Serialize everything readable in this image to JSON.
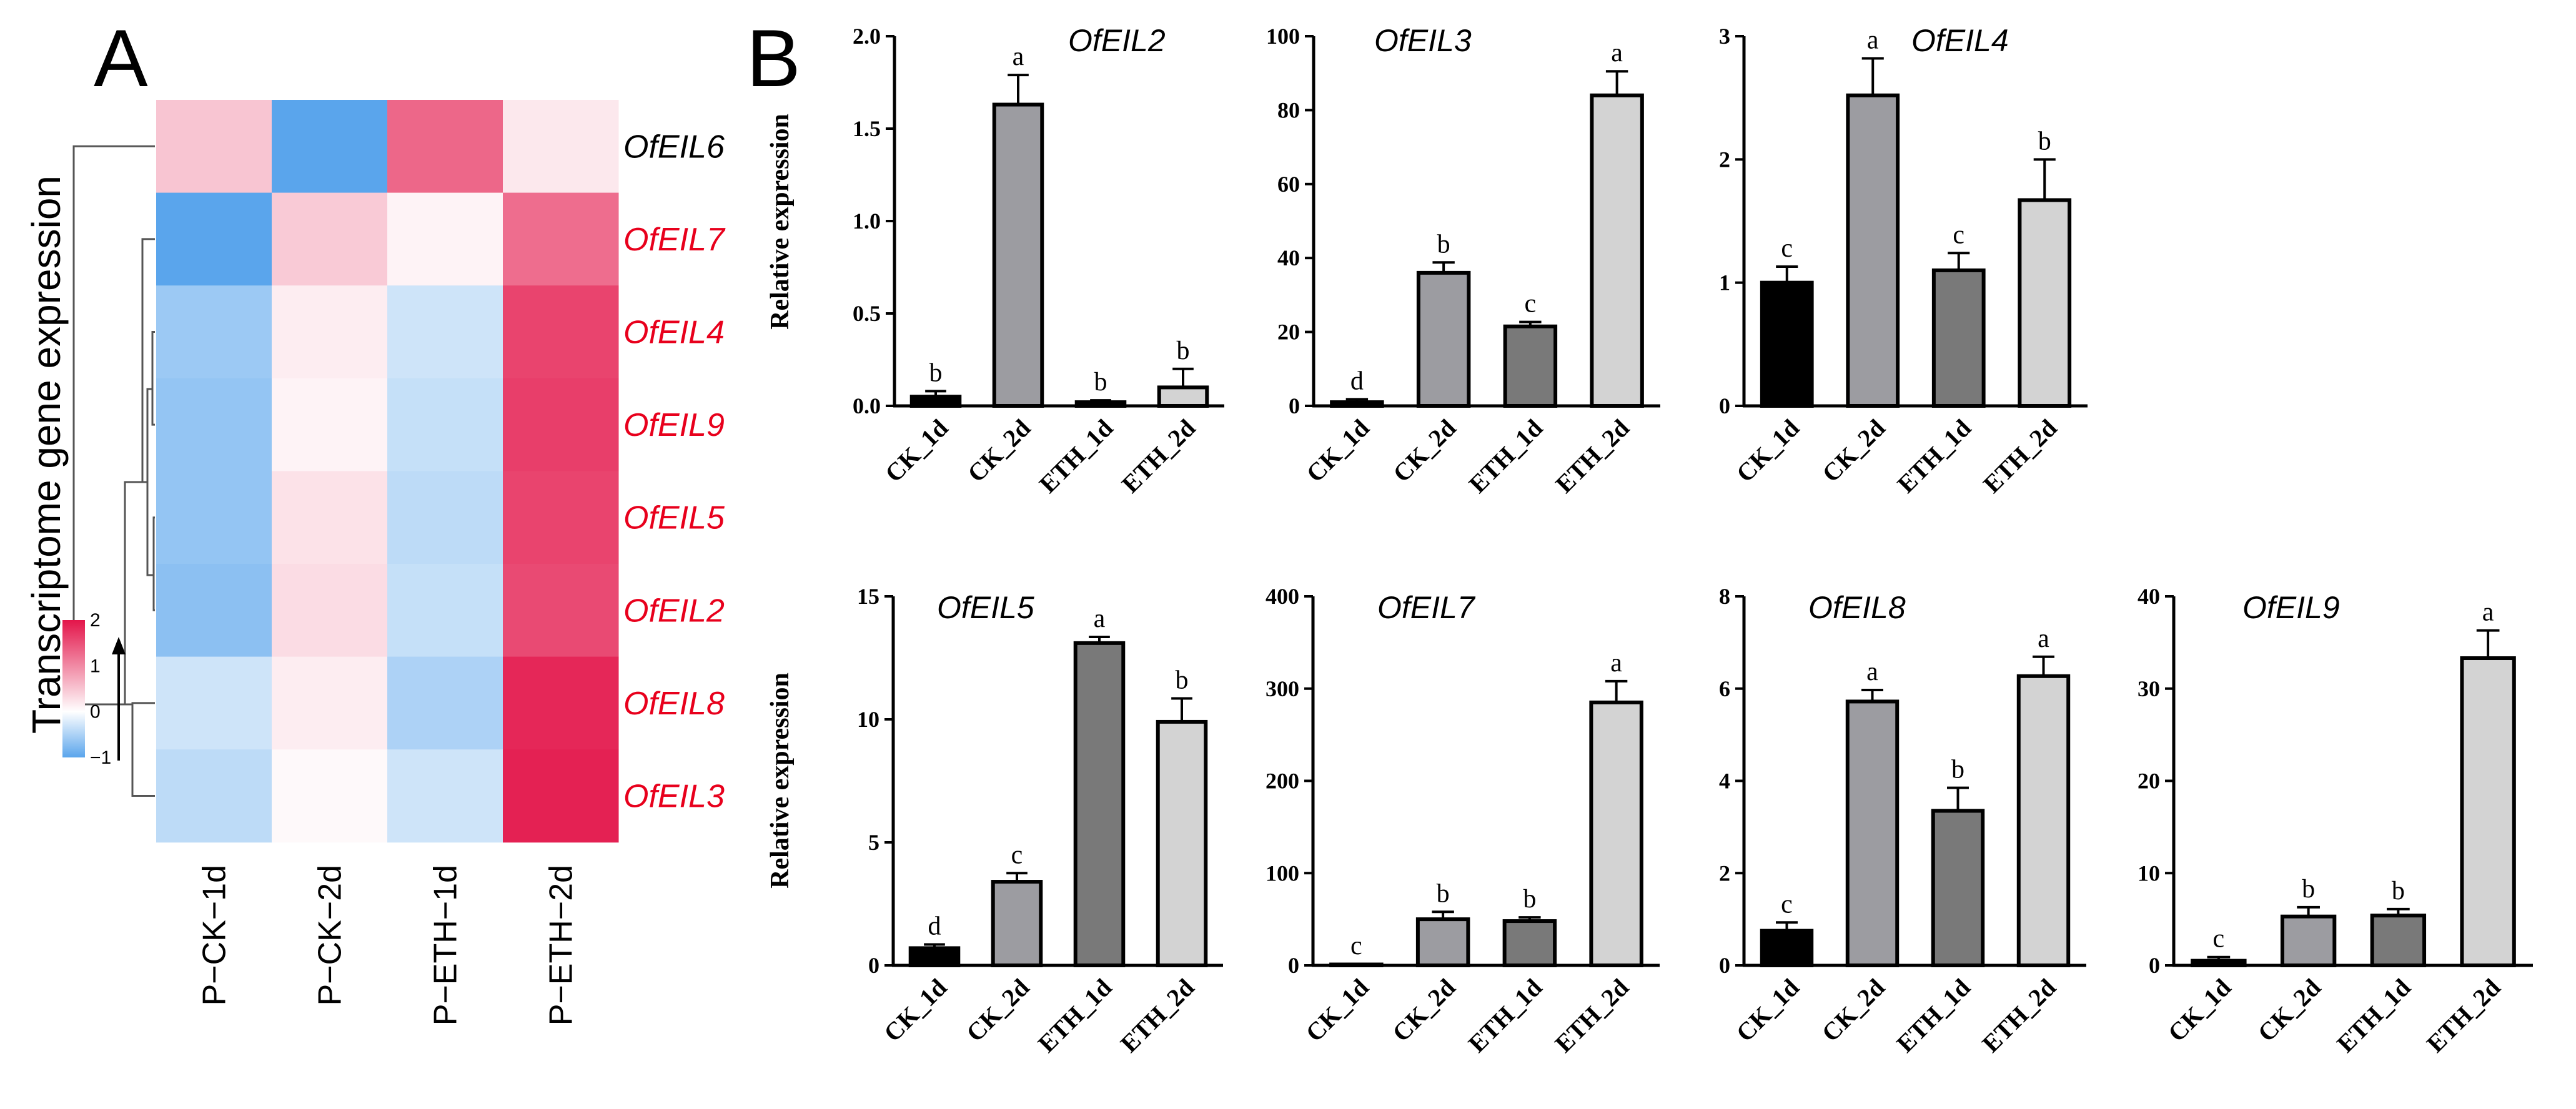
{
  "panel_a": {
    "letter": "A"
  },
  "panel_b": {
    "letter": "B"
  },
  "chart_data": [
    {
      "type": "heatmap",
      "title": "Transcriptome gene expression",
      "columns": [
        "P−CK−1d",
        "P−CK−2d",
        "P−ETH−1d",
        "P−ETH−2d"
      ],
      "rows": [
        "OfEIL6",
        "OfEIL7",
        "OfEIL4",
        "OfEIL9",
        "OfEIL5",
        "OfEIL2",
        "OfEIL8",
        "OfEIL3"
      ],
      "row_label_colors": [
        "#000000",
        "#e8001c",
        "#e8001c",
        "#e8001c",
        "#e8001c",
        "#e8001c",
        "#e8001c",
        "#e8001c"
      ],
      "values": [
        [
          0.5,
          -1.0,
          1.3,
          0.2
        ],
        [
          -1.0,
          0.45,
          0.1,
          1.25
        ],
        [
          -0.6,
          0.15,
          -0.3,
          1.6
        ],
        [
          -0.65,
          0.1,
          -0.35,
          1.65
        ],
        [
          -0.65,
          0.25,
          -0.4,
          1.6
        ],
        [
          -0.7,
          0.3,
          -0.35,
          1.55
        ],
        [
          -0.3,
          0.15,
          -0.5,
          1.85
        ],
        [
          -0.4,
          0.05,
          -0.3,
          1.9
        ]
      ],
      "color_scale": {
        "min": -1,
        "max": 2,
        "ticks": [
          2,
          1,
          0,
          -1
        ],
        "tick_labels": [
          "2",
          "1",
          "0",
          "−1"
        ],
        "low_color": "#5aa5ec",
        "mid_color": "#ffffff",
        "high_color": "#e3154a"
      }
    },
    {
      "type": "bar",
      "title": "OfEIL2",
      "ylabel": "Relative expression",
      "categories": [
        "CK_1d",
        "CK_2d",
        "ETH_1d",
        "ETH_2d"
      ],
      "values": [
        0.05,
        1.63,
        0.02,
        0.1
      ],
      "errors": [
        0.03,
        0.16,
        0.01,
        0.1
      ],
      "letters": [
        "b",
        "a",
        "b",
        "b"
      ],
      "ylim": [
        0,
        2.0
      ],
      "yticks": [
        0,
        0.5,
        1.0,
        1.5,
        2.0
      ],
      "ytick_labels": [
        "0.0",
        "0.5",
        "1.0",
        "1.5",
        "2.0"
      ]
    },
    {
      "type": "bar",
      "title": "OfEIL3",
      "ylabel": "",
      "categories": [
        "CK_1d",
        "CK_2d",
        "ETH_1d",
        "ETH_2d"
      ],
      "values": [
        1,
        36,
        21.5,
        84
      ],
      "errors": [
        0.8,
        2.8,
        1.2,
        6.5
      ],
      "letters": [
        "d",
        "b",
        "c",
        "a"
      ],
      "ylim": [
        0,
        100
      ],
      "yticks": [
        0,
        20,
        40,
        60,
        80,
        100
      ],
      "ytick_labels": [
        "0",
        "20",
        "40",
        "60",
        "80",
        "100"
      ]
    },
    {
      "type": "bar",
      "title": "OfEIL4",
      "ylabel": "",
      "categories": [
        "CK_1d",
        "CK_2d",
        "ETH_1d",
        "ETH_2d"
      ],
      "values": [
        1.0,
        2.52,
        1.1,
        1.67
      ],
      "errors": [
        0.13,
        0.3,
        0.14,
        0.33
      ],
      "letters": [
        "c",
        "a",
        "c",
        "b"
      ],
      "ylim": [
        0,
        3
      ],
      "yticks": [
        0,
        1,
        2,
        3
      ],
      "ytick_labels": [
        "0",
        "1",
        "2",
        "3"
      ]
    },
    {
      "type": "bar",
      "title": "OfEIL5",
      "ylabel": "Relative expression",
      "categories": [
        "CK_1d",
        "CK_2d",
        "ETH_1d",
        "ETH_2d"
      ],
      "values": [
        0.7,
        3.4,
        13.1,
        9.9
      ],
      "errors": [
        0.15,
        0.35,
        0.25,
        0.95
      ],
      "letters": [
        "d",
        "c",
        "a",
        "b"
      ],
      "ylim": [
        0,
        15
      ],
      "yticks": [
        0,
        5,
        10,
        15
      ],
      "ytick_labels": [
        "0",
        "5",
        "10",
        "15"
      ]
    },
    {
      "type": "bar",
      "title": "OfEIL7",
      "ylabel": "",
      "categories": [
        "CK_1d",
        "CK_2d",
        "ETH_1d",
        "ETH_2d"
      ],
      "values": [
        1,
        50,
        48,
        285
      ],
      "errors": [
        0.5,
        8,
        4,
        23
      ],
      "letters": [
        "c",
        "b",
        "b",
        "a"
      ],
      "ylim": [
        0,
        400
      ],
      "yticks": [
        0,
        100,
        200,
        300,
        400
      ],
      "ytick_labels": [
        "0",
        "100",
        "200",
        "300",
        "400"
      ]
    },
    {
      "type": "bar",
      "title": "OfEIL8",
      "ylabel": "",
      "categories": [
        "CK_1d",
        "CK_2d",
        "ETH_1d",
        "ETH_2d"
      ],
      "values": [
        0.75,
        5.72,
        3.35,
        6.27
      ],
      "errors": [
        0.18,
        0.25,
        0.5,
        0.42
      ],
      "letters": [
        "c",
        "a",
        "b",
        "a"
      ],
      "ylim": [
        0,
        8
      ],
      "yticks": [
        0,
        2,
        4,
        6,
        8
      ],
      "ytick_labels": [
        "0",
        "2",
        "4",
        "6",
        "8"
      ]
    },
    {
      "type": "bar",
      "title": "OfEIL9",
      "ylabel": "",
      "categories": [
        "CK_1d",
        "CK_2d",
        "ETH_1d",
        "ETH_2d"
      ],
      "values": [
        0.5,
        5.3,
        5.4,
        33.3
      ],
      "errors": [
        0.4,
        1.0,
        0.7,
        3.0
      ],
      "letters": [
        "c",
        "b",
        "b",
        "a"
      ],
      "ylim": [
        0,
        40
      ],
      "yticks": [
        0,
        10,
        20,
        30,
        40
      ],
      "ytick_labels": [
        "0",
        "10",
        "20",
        "30",
        "40"
      ]
    }
  ],
  "bar_colors": [
    "#000000",
    "#9c9ca1",
    "#797979",
    "#d3d3d3"
  ]
}
